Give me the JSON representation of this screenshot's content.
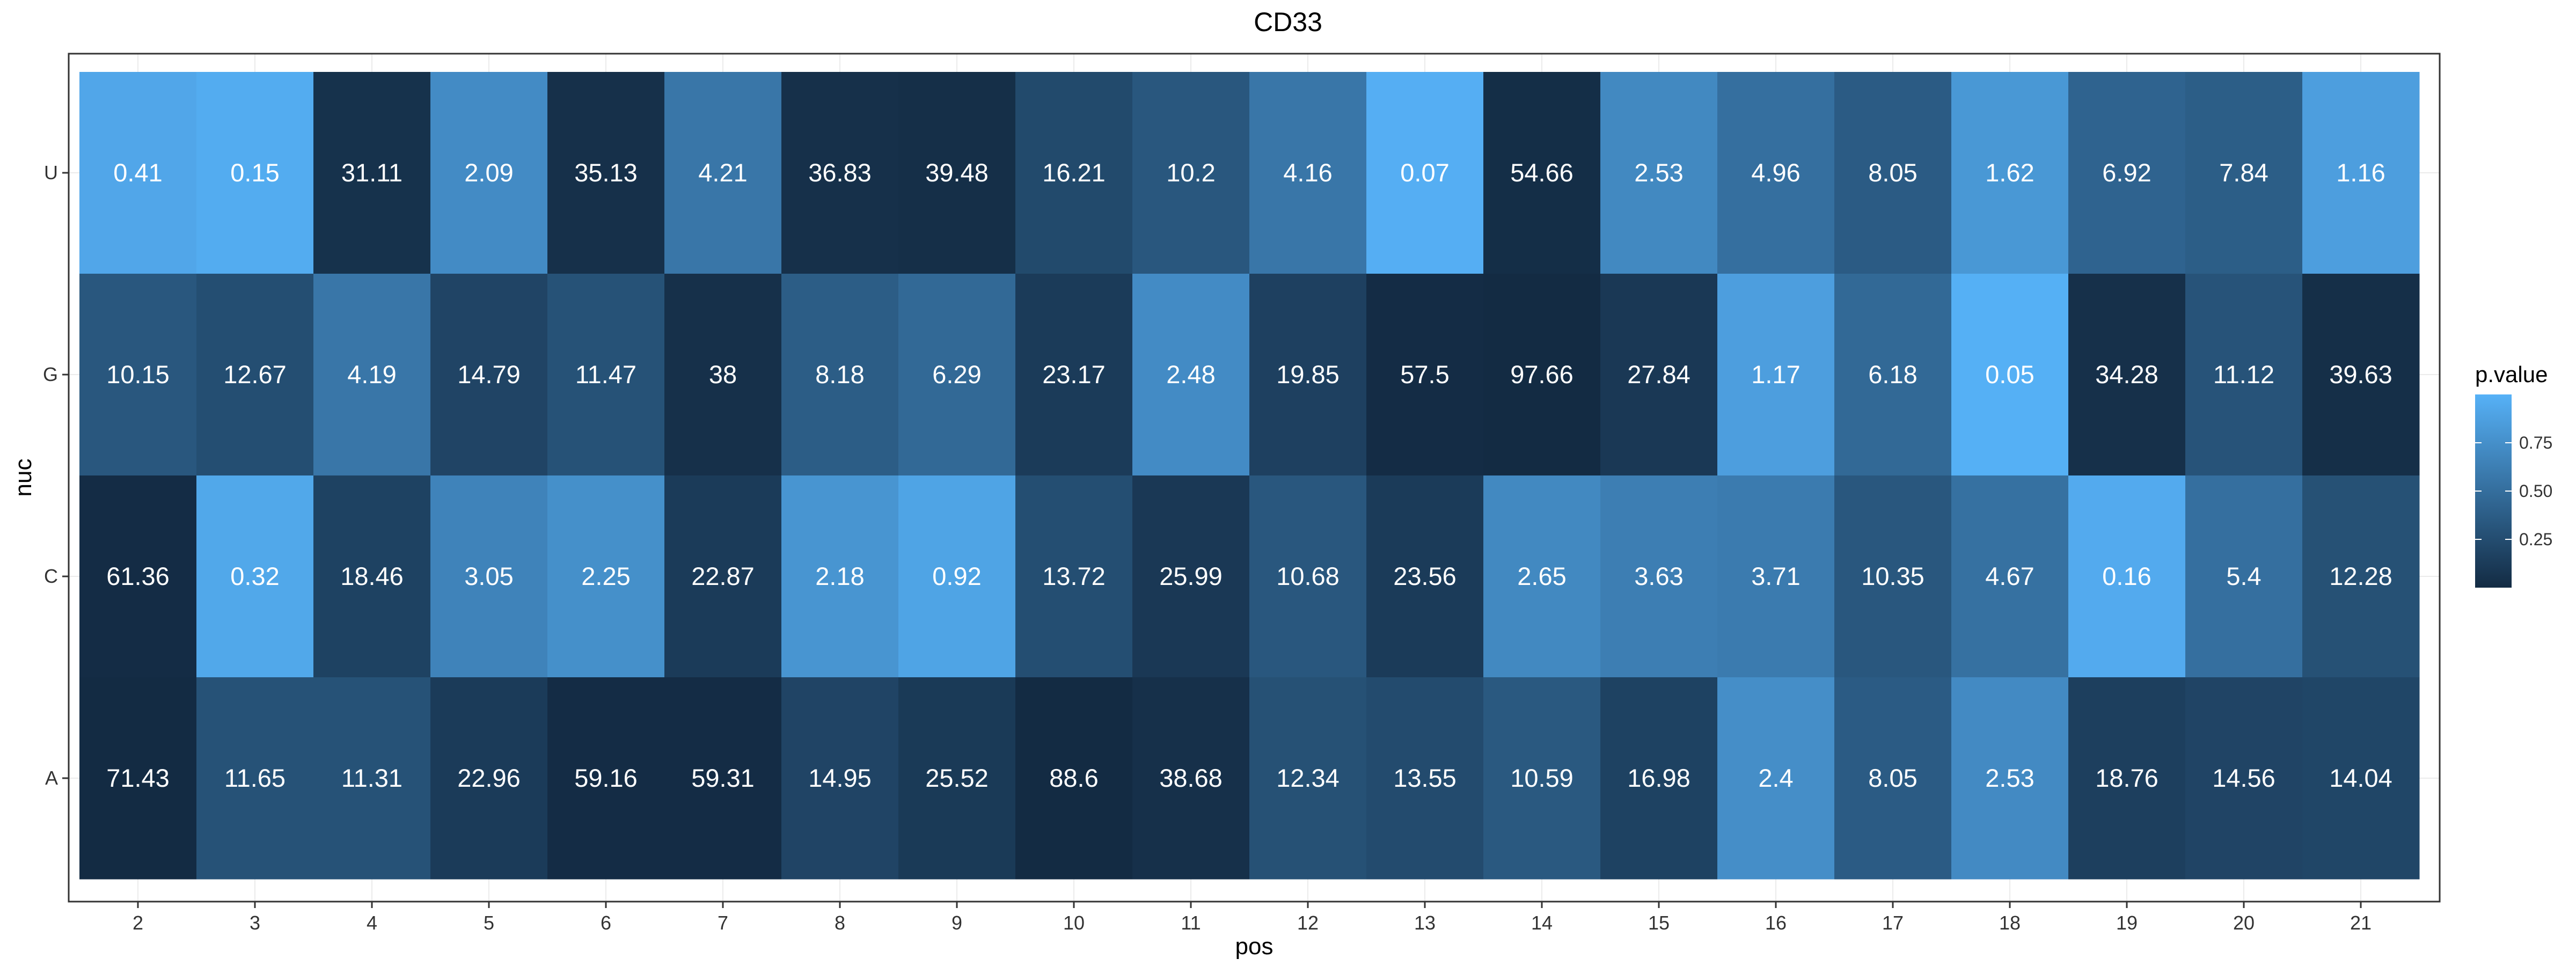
{
  "chart_data": {
    "type": "heatmap",
    "title": "CD33",
    "xlabel": "pos",
    "ylabel": "nuc",
    "x_categories": [
      "2",
      "3",
      "4",
      "5",
      "6",
      "7",
      "8",
      "9",
      "10",
      "11",
      "12",
      "13",
      "14",
      "15",
      "16",
      "17",
      "18",
      "19",
      "20",
      "21"
    ],
    "y_categories": [
      "U",
      "G",
      "C",
      "A"
    ],
    "cell_labels": {
      "U": [
        "0.41",
        "0.15",
        "31.11",
        "2.09",
        "35.13",
        "4.21",
        "36.83",
        "39.48",
        "16.21",
        "10.2",
        "4.16",
        "0.07",
        "54.66",
        "2.53",
        "4.96",
        "8.05",
        "1.62",
        "6.92",
        "7.84",
        "1.16"
      ],
      "G": [
        "10.15",
        "12.67",
        "4.19",
        "14.79",
        "11.47",
        "38",
        "8.18",
        "6.29",
        "23.17",
        "2.48",
        "19.85",
        "57.5",
        "97.66",
        "27.84",
        "1.17",
        "6.18",
        "0.05",
        "34.28",
        "11.12",
        "39.63"
      ],
      "C": [
        "61.36",
        "0.32",
        "18.46",
        "3.05",
        "2.25",
        "22.87",
        "2.18",
        "0.92",
        "13.72",
        "25.99",
        "10.68",
        "23.56",
        "2.65",
        "3.63",
        "3.71",
        "10.35",
        "4.67",
        "0.16",
        "5.4",
        "12.28"
      ],
      "A": [
        "71.43",
        "11.65",
        "11.31",
        "22.96",
        "59.16",
        "59.31",
        "14.95",
        "25.52",
        "88.6",
        "38.68",
        "12.34",
        "13.55",
        "10.59",
        "16.98",
        "2.4",
        "8.05",
        "2.53",
        "18.76",
        "14.56",
        "14.04"
      ]
    },
    "p_values": {
      "U": [
        0.92,
        0.96,
        0.05,
        0.72,
        0.04,
        0.56,
        0.04,
        0.03,
        0.23,
        0.33,
        0.56,
        0.98,
        0.02,
        0.7,
        0.51,
        0.36,
        0.81,
        0.42,
        0.38,
        0.86
      ],
      "G": [
        0.33,
        0.26,
        0.56,
        0.19,
        0.29,
        0.04,
        0.37,
        0.46,
        0.12,
        0.72,
        0.16,
        0.01,
        0.0,
        0.1,
        0.86,
        0.46,
        0.99,
        0.04,
        0.3,
        0.03
      ],
      "C": [
        0.01,
        0.93,
        0.17,
        0.66,
        0.75,
        0.12,
        0.79,
        0.9,
        0.26,
        0.1,
        0.33,
        0.12,
        0.7,
        0.62,
        0.6,
        0.33,
        0.52,
        0.95,
        0.51,
        0.28
      ],
      "A": [
        0.0,
        0.29,
        0.29,
        0.12,
        0.01,
        0.01,
        0.19,
        0.11,
        0.0,
        0.04,
        0.28,
        0.24,
        0.34,
        0.17,
        0.74,
        0.36,
        0.71,
        0.15,
        0.19,
        0.2
      ]
    },
    "legend": {
      "title": "p.value",
      "ticks": [
        0.25,
        0.5,
        0.75
      ],
      "tick_labels": [
        "0.25",
        "0.50",
        "0.75"
      ],
      "range": [
        0,
        1
      ],
      "placement": "right"
    },
    "colors": {
      "low": "#132b43",
      "high": "#56b1f7",
      "panel_grid": "#ebebeb",
      "panel_border": "#333333"
    },
    "grid": true
  }
}
